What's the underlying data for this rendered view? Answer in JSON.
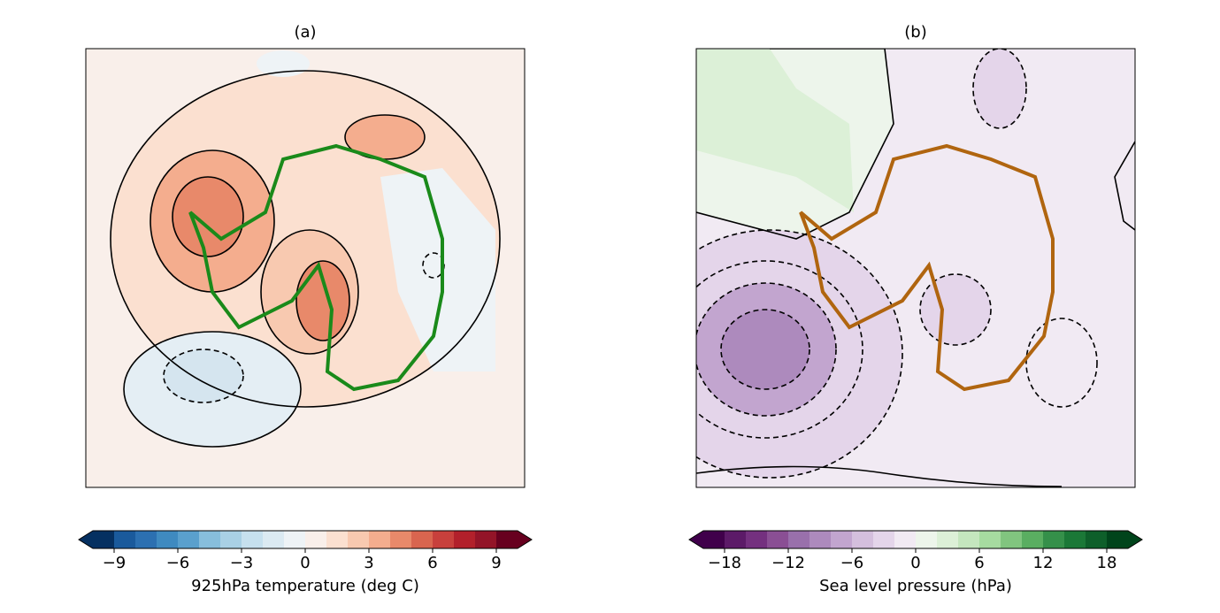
{
  "panels": [
    {
      "title": "(a)",
      "colorbar": {
        "label": "925hPa temperature (deg C)",
        "range": [
          -10,
          10
        ],
        "ticks": [
          {
            "value": -9,
            "label": "−9"
          },
          {
            "value": -6,
            "label": "−6"
          },
          {
            "value": -3,
            "label": "−3"
          },
          0,
          3,
          6,
          9
        ],
        "colors": [
          "#053061",
          "#1a5a9c",
          "#2c70b1",
          "#3f8ac0",
          "#5aa0cd",
          "#87bedc",
          "#a9d0e5",
          "#c6e0ee",
          "#dbeaf2",
          "#eef3f6",
          "#f9efea",
          "#fbe0d0",
          "#f8c9b0",
          "#f4ad8e",
          "#e8896a",
          "#d9654f",
          "#c8403c",
          "#b2202b",
          "#931428",
          "#67001f"
        ]
      }
    },
    {
      "title": "(b)",
      "colorbar": {
        "label": "Sea level pressure (hPa)",
        "range": [
          -20,
          20
        ],
        "ticks": [
          {
            "value": -18,
            "label": "−18"
          },
          {
            "value": -12,
            "label": "−12"
          },
          {
            "value": -6,
            "label": "−6"
          },
          0,
          6,
          12,
          18
        ],
        "colors": [
          "#40004b",
          "#5c1a68",
          "#74307f",
          "#8a4f94",
          "#9970ab",
          "#ad8abd",
          "#c2a5cf",
          "#d4bfdd",
          "#e4d5ea",
          "#f1eaf3",
          "#edf5eb",
          "#dcf0d7",
          "#c4e6be",
          "#a6dba0",
          "#81c57f",
          "#5aae61",
          "#35904a",
          "#1b7837",
          "#0e5f2a",
          "#00441b"
        ]
      }
    }
  ]
}
